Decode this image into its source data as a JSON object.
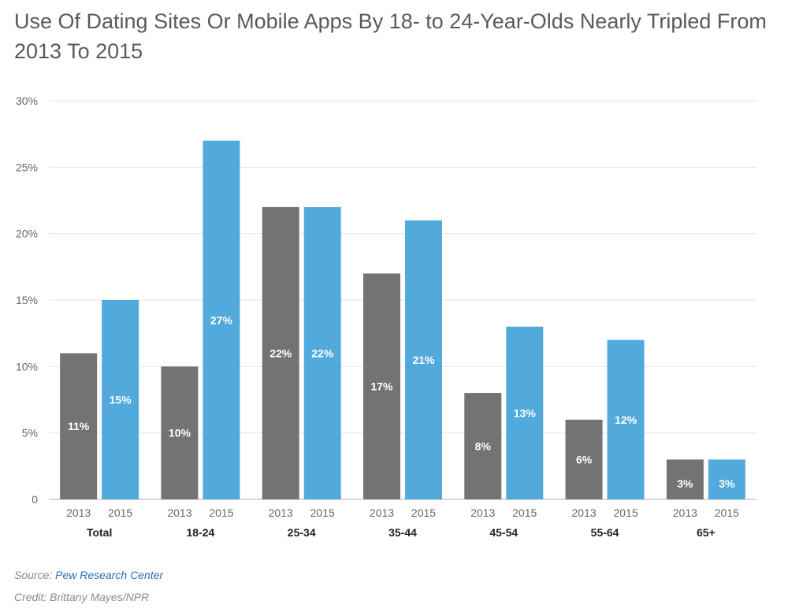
{
  "title": "Use Of Dating Sites Or Mobile Apps By 18- to 24-Year-Olds Nearly Tripled From 2013 To 2015",
  "source_label": "Source:",
  "source_name": "Pew Research Center",
  "credit": "Credit: Brittany Mayes/NPR",
  "colors": {
    "y2013": "#737373",
    "y2015": "#52aadc",
    "grid": "#e6e6e6",
    "axis": "#b0b0b0",
    "text": "#666666"
  },
  "chart_data": {
    "type": "bar",
    "categories": [
      "Total",
      "18-24",
      "25-34",
      "35-44",
      "45-54",
      "55-64",
      "65+"
    ],
    "series": [
      {
        "name": "2013",
        "values": [
          11,
          10,
          22,
          17,
          8,
          6,
          3
        ]
      },
      {
        "name": "2015",
        "values": [
          15,
          27,
          22,
          21,
          13,
          12,
          3
        ]
      }
    ],
    "ylim": [
      0,
      30
    ],
    "yticks": [
      0,
      5,
      10,
      15,
      20,
      25,
      30
    ],
    "ytick_labels": [
      "0",
      "5%",
      "10%",
      "15%",
      "20%",
      "25%",
      "30%"
    ],
    "data_labels": [
      [
        "11%",
        "10%",
        "22%",
        "17%",
        "8%",
        "6%",
        "3%"
      ],
      [
        "15%",
        "27%",
        "22%",
        "21%",
        "13%",
        "12%",
        "3%"
      ]
    ],
    "grid": true,
    "xlabel": "",
    "ylabel": ""
  }
}
